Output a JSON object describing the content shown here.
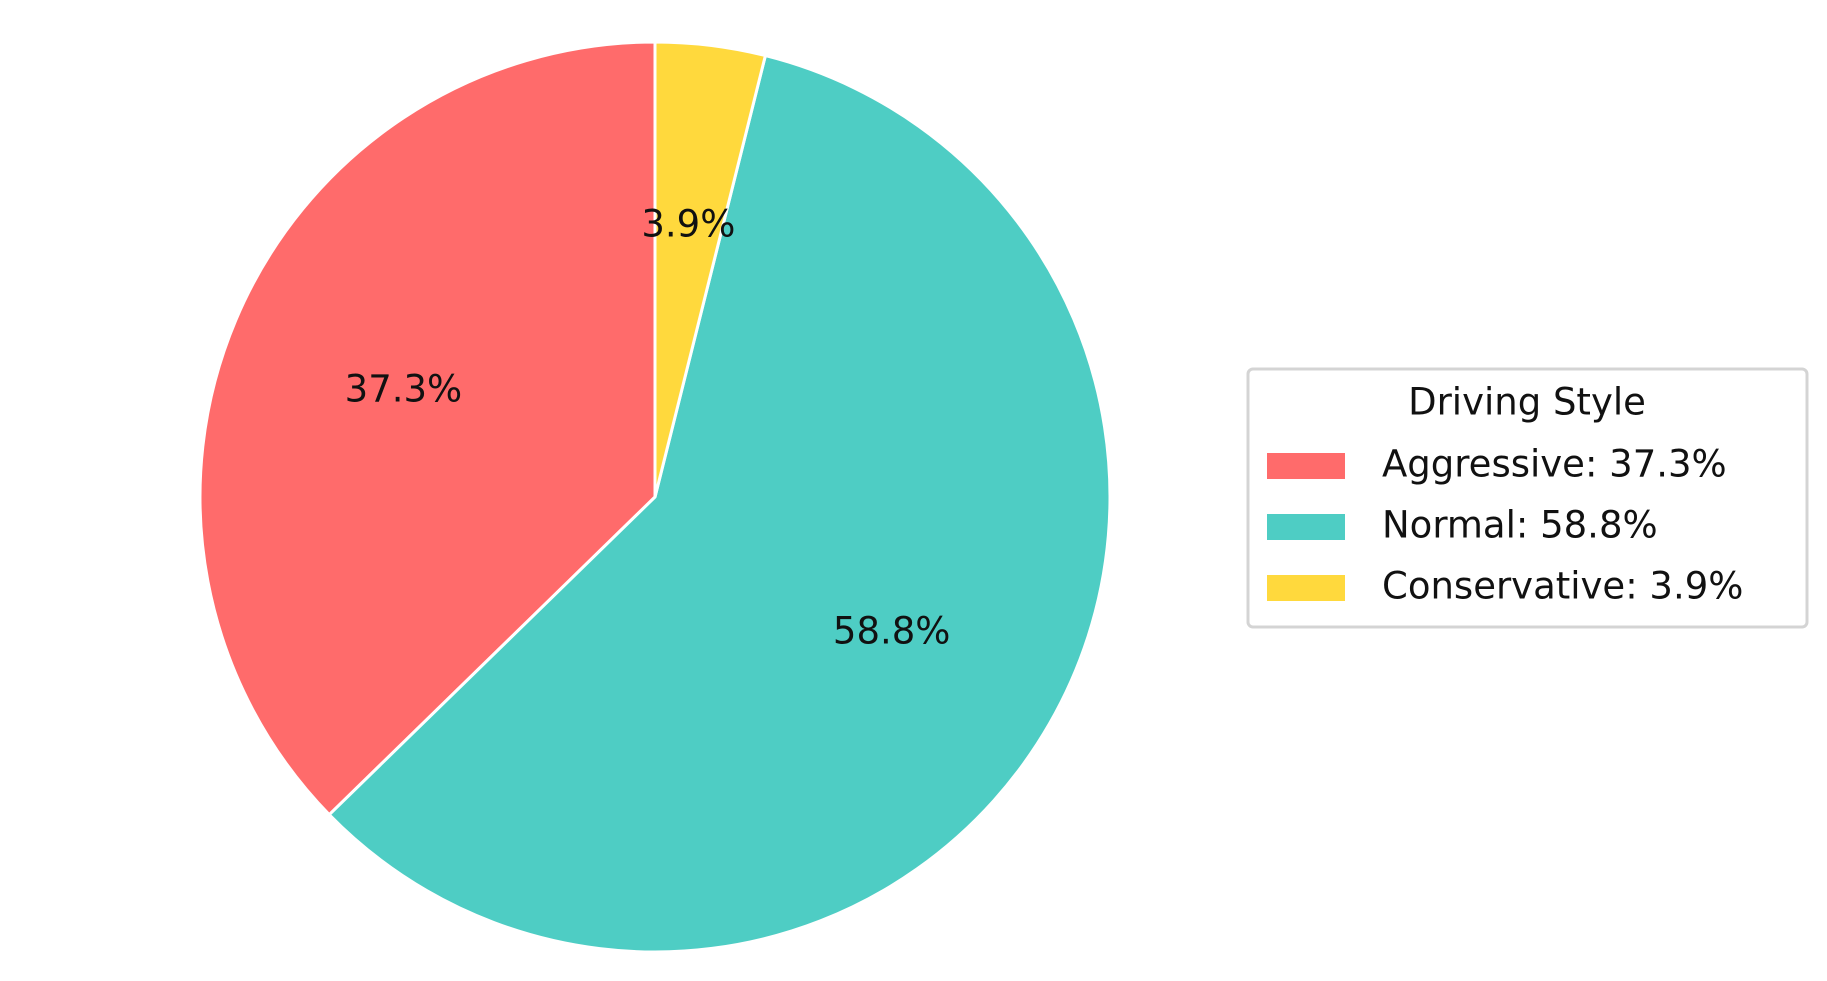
{
  "chart_data": {
    "type": "pie",
    "categories": [
      "Aggressive: 37.3%",
      "Normal: 58.8%",
      "Conservative: 3.9%"
    ],
    "values": [
      37.3,
      58.8,
      3.9
    ],
    "value_labels": [
      "37.3%",
      "58.8%",
      "3.9%"
    ],
    "colors": [
      "#ff6b6b",
      "#4ecdc4",
      "#ffd93d"
    ],
    "legend_title": "Driving Style",
    "legend_position": "right"
  }
}
